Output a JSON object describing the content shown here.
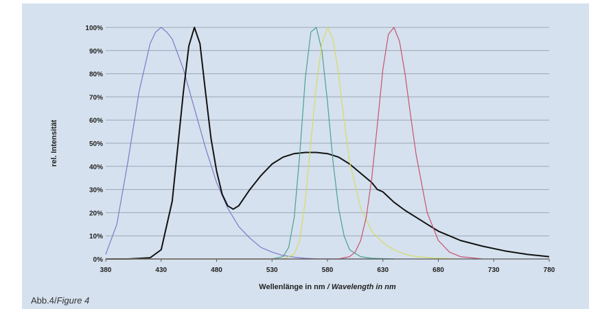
{
  "caption": {
    "de": "Abb.4/",
    "en": "Figure 4"
  },
  "chart_data": {
    "type": "line",
    "xlabel_de": "Wellenlänge in nm",
    "xlabel_en": " / Wavelength in nm",
    "ylabel": "rel. Intensität",
    "xlim": [
      380,
      780
    ],
    "ylim": [
      0,
      100
    ],
    "x_ticks": [
      380,
      430,
      480,
      530,
      580,
      630,
      680,
      730,
      780
    ],
    "x_tick_labels": [
      "380",
      "430",
      "480",
      "530",
      "580",
      "630",
      "680",
      "730",
      "780"
    ],
    "y_ticks": [
      0,
      10,
      20,
      30,
      40,
      50,
      60,
      70,
      80,
      90,
      100
    ],
    "y_tick_labels": [
      "0%",
      "10%",
      "20%",
      "30%",
      "40%",
      "50%",
      "60%",
      "70%",
      "80%",
      "90%",
      "100%"
    ],
    "grid": true,
    "series": [
      {
        "color": "#7a7ac8",
        "x": [
          380,
          390,
          400,
          410,
          420,
          425,
          430,
          435,
          440,
          450,
          460,
          470,
          480,
          490,
          500,
          510,
          520,
          530,
          540,
          550,
          560,
          570,
          580,
          600,
          640
        ],
        "y": [
          2,
          15,
          42,
          72,
          93,
          98,
          100,
          98,
          95,
          82,
          65,
          48,
          33,
          22,
          14,
          9,
          5,
          3,
          1.5,
          0.8,
          0.3,
          0.1,
          0,
          0,
          0
        ]
      },
      {
        "color": "#111111",
        "x": [
          380,
          400,
          420,
          430,
          440,
          450,
          455,
          460,
          465,
          470,
          475,
          480,
          485,
          490,
          495,
          500,
          510,
          520,
          530,
          540,
          550,
          560,
          570,
          580,
          590,
          600,
          610,
          620,
          625,
          630,
          640,
          650,
          660,
          670,
          680,
          690,
          700,
          720,
          740,
          760,
          780
        ],
        "y": [
          0,
          0,
          0.5,
          4,
          25,
          72,
          92,
          100,
          93,
          72,
          52,
          38,
          28,
          23,
          21.5,
          23,
          30,
          36,
          41,
          44,
          45.5,
          46,
          46,
          45.5,
          44,
          41,
          37,
          33,
          30,
          29,
          24.5,
          21,
          18,
          15,
          12,
          10,
          8,
          5.5,
          3.5,
          2,
          1
        ]
      },
      {
        "color": "#4aa090",
        "x": [
          380,
          530,
          540,
          545,
          550,
          555,
          560,
          565,
          570,
          575,
          580,
          585,
          590,
          595,
          600,
          610,
          620,
          640
        ],
        "y": [
          0,
          0,
          1,
          5,
          18,
          45,
          78,
          98,
          100,
          90,
          68,
          42,
          22,
          10,
          4,
          1,
          0.3,
          0
        ]
      },
      {
        "color": "#d8dc60",
        "x": [
          380,
          540,
          550,
          555,
          560,
          565,
          570,
          575,
          580,
          585,
          590,
          595,
          600,
          610,
          620,
          630,
          640,
          650,
          660,
          680,
          700
        ],
        "y": [
          0,
          0,
          2,
          8,
          25,
          50,
          75,
          93,
          100,
          95,
          80,
          60,
          42,
          22,
          12,
          7,
          4,
          2,
          1,
          0.3,
          0
        ]
      },
      {
        "color": "#c85070",
        "x": [
          380,
          590,
          600,
          605,
          610,
          615,
          620,
          625,
          630,
          635,
          640,
          645,
          650,
          655,
          660,
          670,
          680,
          690,
          700,
          720
        ],
        "y": [
          0,
          0,
          1,
          3,
          8,
          18,
          35,
          58,
          82,
          97,
          100,
          94,
          80,
          62,
          45,
          20,
          8,
          3,
          1,
          0
        ]
      }
    ]
  }
}
